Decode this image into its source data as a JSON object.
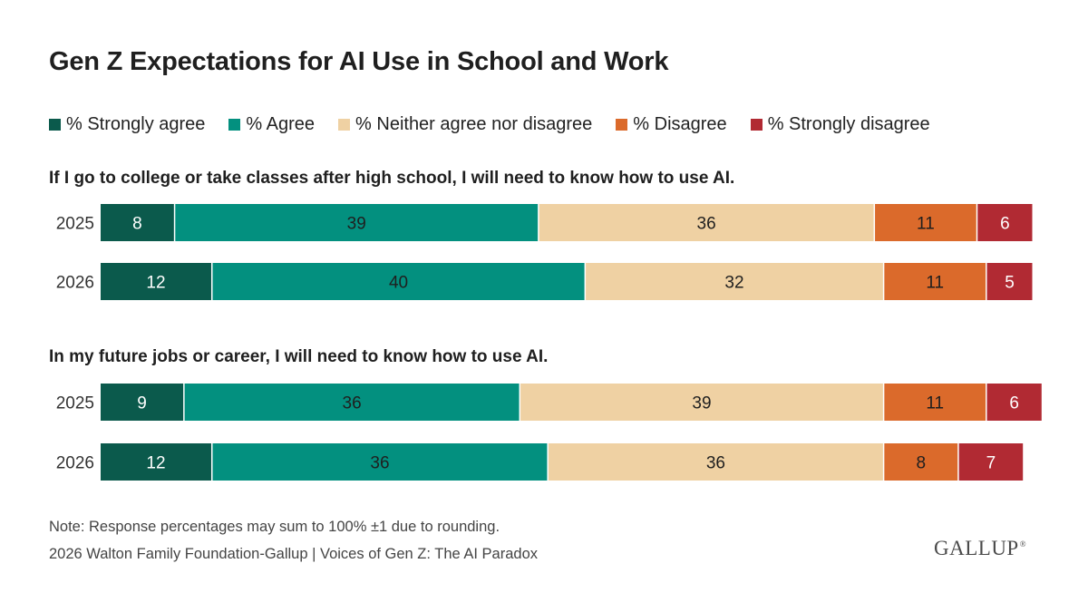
{
  "title": "Gen Z Expectations for AI Use in School and Work",
  "legend": [
    {
      "label": "% Strongly agree",
      "color": "#0b5a4c"
    },
    {
      "label": "% Agree",
      "color": "#03907f"
    },
    {
      "label": "% Neither agree nor disagree",
      "color": "#efd1a3"
    },
    {
      "label": "% Disagree",
      "color": "#db6a2b"
    },
    {
      "label": "% Strongly disagree",
      "color": "#b12a33"
    }
  ],
  "chart_data": {
    "type": "bar",
    "orientation": "horizontal",
    "stacked": true,
    "legend_position": "top",
    "categories": [
      "% Strongly agree",
      "% Agree",
      "% Neither agree nor disagree",
      "% Disagree",
      "% Strongly disagree"
    ],
    "groups": [
      {
        "question": "If I go to college or take classes after high school, I will need to know how to use AI.",
        "rows": [
          {
            "year": "2025",
            "values": [
              8,
              39,
              36,
              11,
              6
            ]
          },
          {
            "year": "2026",
            "values": [
              12,
              40,
              32,
              11,
              5
            ]
          }
        ]
      },
      {
        "question": "In my future jobs or career, I will need to know how to use AI.",
        "rows": [
          {
            "year": "2025",
            "values": [
              9,
              36,
              39,
              11,
              6
            ]
          },
          {
            "year": "2026",
            "values": [
              12,
              36,
              36,
              8,
              7
            ]
          }
        ]
      }
    ]
  },
  "note": "Note: Response percentages may sum to 100% ±1 due to rounding.",
  "source": "2026 Walton Family Foundation-Gallup | Voices of Gen Z: The AI Paradox",
  "logo": "GALLUP"
}
